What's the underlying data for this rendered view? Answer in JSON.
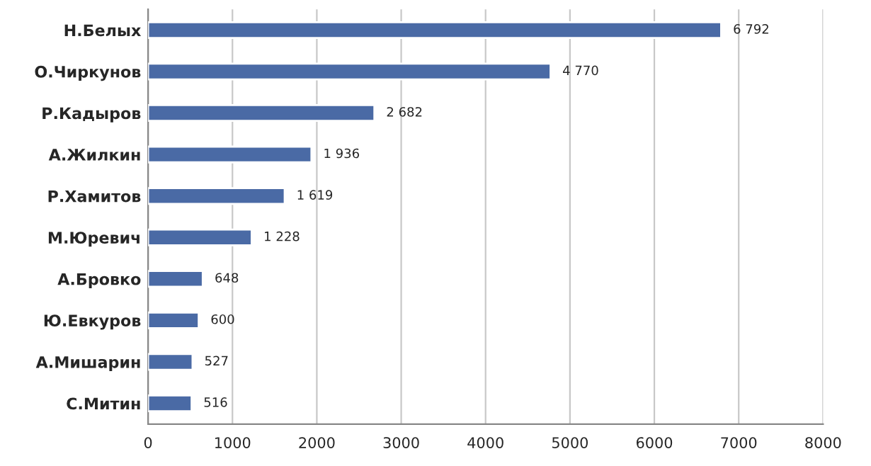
{
  "chart_data": {
    "type": "bar",
    "orientation": "horizontal",
    "categories": [
      "Н.Белых",
      "О.Чиркунов",
      "Р.Кадыров",
      "А.Жилкин",
      "Р.Хамитов",
      "М.Юревич",
      "А.Бровко",
      "Ю.Евкуров",
      "А.Мишарин",
      "С.Митин"
    ],
    "values": [
      6792,
      4770,
      2682,
      1936,
      1619,
      1228,
      648,
      600,
      527,
      516
    ],
    "value_labels": [
      "6 792",
      "4 770",
      "2 682",
      "1 936",
      "1 619",
      "1 228",
      "648",
      "600",
      "527",
      "516"
    ],
    "color": "#4a6aa5",
    "xlim": [
      0,
      8000
    ],
    "xticks": [
      0,
      1000,
      2000,
      3000,
      4000,
      5000,
      6000,
      7000,
      8000
    ],
    "grid": "x"
  }
}
